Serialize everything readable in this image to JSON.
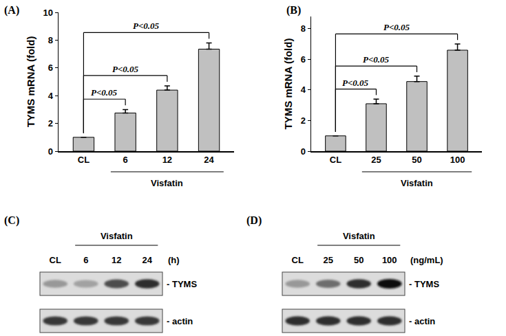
{
  "chart_data": [
    {
      "type": "bar",
      "panel": "(A)",
      "y_label": "TYMS mRNA (fold)",
      "categories": [
        "CL",
        "6",
        "12",
        "24"
      ],
      "values": [
        1,
        2.75,
        4.4,
        7.35
      ],
      "errors": [
        0,
        0.25,
        0.3,
        0.45
      ],
      "color": "#c0c0c0",
      "ylim": [
        0,
        10
      ],
      "yticks": [
        0,
        2,
        4,
        6,
        8,
        10
      ],
      "grid": false,
      "x_unit_label": "(h)",
      "group": {
        "label": "Visfatin",
        "categories": [
          "6",
          "12",
          "24"
        ]
      },
      "comparisons": [
        {
          "from": "CL",
          "to": "6",
          "label": "P<0.05"
        },
        {
          "from": "CL",
          "to": "12",
          "label": "P<0.05"
        },
        {
          "from": "CL",
          "to": "24",
          "label": "P<0.05"
        }
      ]
    },
    {
      "type": "bar",
      "panel": "(B)",
      "y_label": "TYMS mRNA (fold)",
      "categories": [
        "CL",
        "25",
        "50",
        "100"
      ],
      "values": [
        1,
        3.1,
        4.55,
        6.6
      ],
      "errors": [
        0,
        0.3,
        0.35,
        0.4
      ],
      "color": "#c0c0c0",
      "ylim": [
        0,
        8.8
      ],
      "yticks": [
        0,
        2,
        4,
        6,
        8
      ],
      "grid": false,
      "x_unit_label": "(ng/mL)",
      "group": {
        "label": "Visfatin",
        "categories": [
          "25",
          "50",
          "100"
        ]
      },
      "comparisons": [
        {
          "from": "CL",
          "to": "25",
          "label": "P<0.05"
        },
        {
          "from": "CL",
          "to": "50",
          "label": "P<0.05"
        },
        {
          "from": "CL",
          "to": "100",
          "label": "P<0.05"
        }
      ]
    }
  ],
  "blots": [
    {
      "panel": "(C)",
      "lanes": [
        "CL",
        "6",
        "12",
        "24"
      ],
      "unit": "(h)",
      "group": {
        "label": "Visfatin",
        "lanes": [
          "6",
          "12",
          "24"
        ]
      },
      "rows": [
        {
          "label": "- TYMS",
          "intensity": [
            0.35,
            0.3,
            0.7,
            0.85
          ]
        },
        {
          "label": "- actin",
          "intensity": [
            0.8,
            0.8,
            0.8,
            0.8
          ]
        }
      ]
    },
    {
      "panel": "(D)",
      "lanes": [
        "CL",
        "25",
        "50",
        "100"
      ],
      "unit": "(ng/mL)",
      "group": {
        "label": "Visfatin",
        "lanes": [
          "25",
          "50",
          "100"
        ]
      },
      "rows": [
        {
          "label": "- TYMS",
          "intensity": [
            0.35,
            0.55,
            0.85,
            1.0
          ]
        },
        {
          "label": "- actin",
          "intensity": [
            0.85,
            0.85,
            0.85,
            0.85
          ]
        }
      ]
    }
  ]
}
